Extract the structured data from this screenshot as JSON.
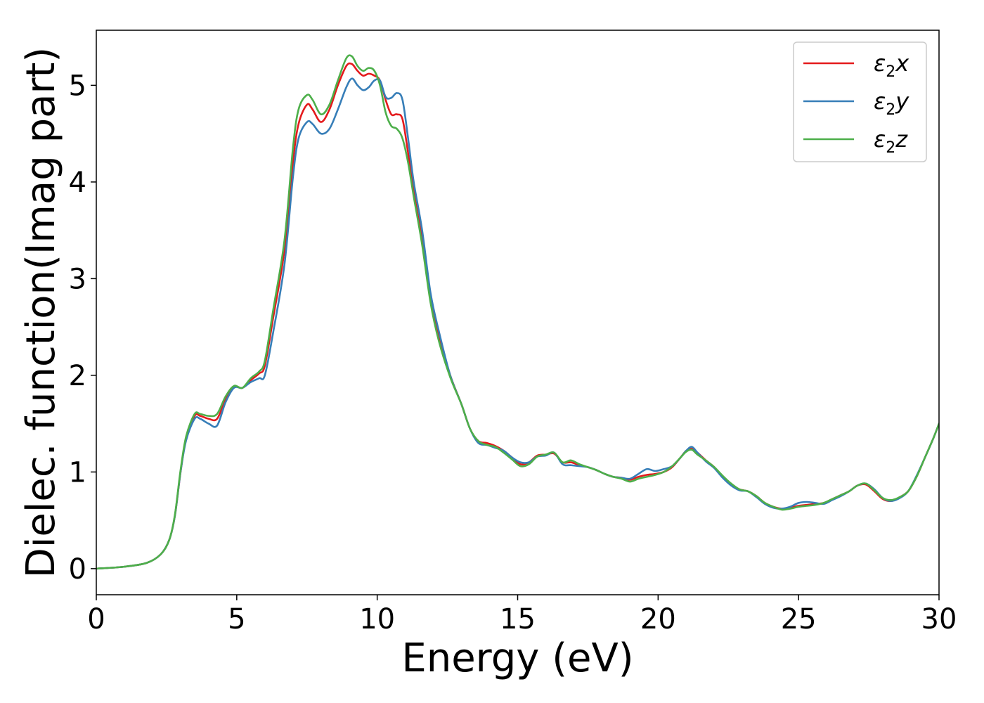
{
  "chart_data": {
    "type": "line",
    "title": "",
    "xlabel": "Energy (eV)",
    "ylabel": "Dielec. function(Imag part)",
    "xlim": [
      0,
      30
    ],
    "ylim": [
      -0.27,
      5.57
    ],
    "xticks": [
      0,
      5,
      10,
      15,
      20,
      25,
      30
    ],
    "xtick_labels": [
      "0",
      "5",
      "10",
      "15",
      "20",
      "25",
      "30"
    ],
    "yticks": [
      0,
      1,
      2,
      3,
      4,
      5
    ],
    "ytick_labels": [
      "0",
      "1",
      "2",
      "3",
      "4",
      "5"
    ],
    "grid": false,
    "legend_position": "top-right",
    "series": [
      {
        "name": "ε2x",
        "legend": {
          "symbol": "ε",
          "sub": "2",
          "axis": "x"
        },
        "color": "#e41a1c",
        "x": [
          0,
          1,
          1.8,
          2.3,
          2.6,
          2.8,
          3.0,
          3.2,
          3.5,
          3.7,
          4.0,
          4.3,
          4.6,
          4.9,
          5.2,
          5.5,
          5.8,
          6.0,
          6.3,
          6.7,
          7.0,
          7.2,
          7.5,
          7.7,
          8.0,
          8.3,
          8.6,
          8.9,
          9.1,
          9.3,
          9.5,
          9.7,
          9.9,
          10.1,
          10.3,
          10.5,
          10.7,
          10.9,
          11.1,
          11.3,
          11.6,
          11.9,
          12.2,
          12.6,
          13.0,
          13.3,
          13.6,
          13.9,
          14.2,
          14.5,
          14.8,
          15.1,
          15.4,
          15.7,
          16.0,
          16.3,
          16.6,
          16.9,
          17.2,
          17.5,
          17.8,
          18.1,
          18.4,
          18.7,
          19.0,
          19.3,
          19.6,
          19.9,
          20.2,
          20.5,
          20.8,
          21.0,
          21.2,
          21.4,
          21.7,
          22.0,
          22.3,
          22.6,
          22.9,
          23.2,
          23.5,
          23.8,
          24.1,
          24.4,
          24.7,
          25.0,
          25.3,
          25.6,
          25.9,
          26.2,
          26.5,
          26.8,
          27.1,
          27.4,
          27.7,
          28.0,
          28.3,
          28.6,
          28.9,
          29.2,
          29.5,
          29.8,
          30.0
        ],
        "y": [
          0,
          0.02,
          0.06,
          0.15,
          0.3,
          0.55,
          1.0,
          1.35,
          1.58,
          1.58,
          1.55,
          1.55,
          1.75,
          1.88,
          1.87,
          1.95,
          2.02,
          2.1,
          2.6,
          3.3,
          4.2,
          4.6,
          4.8,
          4.75,
          4.62,
          4.75,
          5.0,
          5.2,
          5.22,
          5.15,
          5.1,
          5.12,
          5.1,
          5.05,
          4.85,
          4.7,
          4.7,
          4.65,
          4.3,
          3.9,
          3.4,
          2.8,
          2.4,
          2.0,
          1.7,
          1.45,
          1.32,
          1.3,
          1.27,
          1.22,
          1.15,
          1.08,
          1.1,
          1.17,
          1.18,
          1.19,
          1.1,
          1.1,
          1.07,
          1.05,
          1.02,
          0.98,
          0.95,
          0.94,
          0.92,
          0.95,
          0.97,
          0.98,
          1.0,
          1.05,
          1.15,
          1.22,
          1.24,
          1.2,
          1.12,
          1.05,
          0.95,
          0.87,
          0.82,
          0.8,
          0.75,
          0.68,
          0.64,
          0.62,
          0.63,
          0.65,
          0.66,
          0.67,
          0.68,
          0.72,
          0.76,
          0.8,
          0.86,
          0.87,
          0.8,
          0.72,
          0.7,
          0.74,
          0.8,
          0.95,
          1.15,
          1.35,
          1.5
        ]
      },
      {
        "name": "ε2y",
        "legend": {
          "symbol": "ε",
          "sub": "2",
          "axis": "y"
        },
        "color": "#377eb8",
        "x": [
          0,
          1,
          1.8,
          2.3,
          2.6,
          2.8,
          3.0,
          3.2,
          3.5,
          3.7,
          4.0,
          4.3,
          4.6,
          4.9,
          5.2,
          5.5,
          5.8,
          6.0,
          6.3,
          6.7,
          7.0,
          7.2,
          7.5,
          7.7,
          8.0,
          8.3,
          8.6,
          8.9,
          9.1,
          9.3,
          9.5,
          9.7,
          9.9,
          10.1,
          10.3,
          10.5,
          10.7,
          10.9,
          11.1,
          11.3,
          11.6,
          11.9,
          12.2,
          12.6,
          13.0,
          13.3,
          13.6,
          13.9,
          14.2,
          14.5,
          14.8,
          15.1,
          15.4,
          15.7,
          16.0,
          16.3,
          16.6,
          16.9,
          17.2,
          17.5,
          17.8,
          18.1,
          18.4,
          18.7,
          19.0,
          19.3,
          19.6,
          19.9,
          20.2,
          20.5,
          20.8,
          21.0,
          21.2,
          21.4,
          21.7,
          22.0,
          22.3,
          22.6,
          22.9,
          23.2,
          23.5,
          23.8,
          24.1,
          24.4,
          24.7,
          25.0,
          25.3,
          25.6,
          25.9,
          26.2,
          26.5,
          26.8,
          27.1,
          27.4,
          27.7,
          28.0,
          28.3,
          28.6,
          28.9,
          29.2,
          29.5,
          29.8,
          30.0
        ],
        "y": [
          0,
          0.02,
          0.06,
          0.15,
          0.3,
          0.55,
          1.0,
          1.33,
          1.55,
          1.55,
          1.5,
          1.48,
          1.72,
          1.87,
          1.87,
          1.93,
          1.97,
          2.0,
          2.45,
          3.15,
          4.05,
          4.45,
          4.62,
          4.6,
          4.5,
          4.55,
          4.75,
          4.98,
          5.07,
          5.0,
          4.95,
          4.98,
          5.05,
          5.05,
          4.88,
          4.87,
          4.92,
          4.85,
          4.45,
          4.0,
          3.5,
          2.85,
          2.45,
          2.0,
          1.7,
          1.45,
          1.3,
          1.28,
          1.25,
          1.22,
          1.15,
          1.1,
          1.1,
          1.16,
          1.17,
          1.2,
          1.08,
          1.07,
          1.06,
          1.05,
          1.02,
          0.98,
          0.95,
          0.94,
          0.93,
          0.98,
          1.03,
          1.01,
          1.03,
          1.06,
          1.15,
          1.22,
          1.26,
          1.2,
          1.11,
          1.04,
          0.94,
          0.86,
          0.81,
          0.8,
          0.74,
          0.67,
          0.63,
          0.62,
          0.64,
          0.68,
          0.69,
          0.68,
          0.67,
          0.71,
          0.75,
          0.8,
          0.86,
          0.88,
          0.82,
          0.73,
          0.7,
          0.73,
          0.8,
          0.96,
          1.15,
          1.35,
          1.5
        ]
      },
      {
        "name": "ε2z",
        "legend": {
          "symbol": "ε",
          "sub": "2",
          "axis": "z"
        },
        "color": "#4daf4a",
        "x": [
          0,
          1,
          1.8,
          2.3,
          2.6,
          2.8,
          3.0,
          3.2,
          3.5,
          3.7,
          4.0,
          4.3,
          4.6,
          4.9,
          5.2,
          5.5,
          5.8,
          6.0,
          6.3,
          6.7,
          7.0,
          7.2,
          7.5,
          7.7,
          8.0,
          8.3,
          8.6,
          8.9,
          9.1,
          9.3,
          9.5,
          9.7,
          9.9,
          10.1,
          10.3,
          10.5,
          10.7,
          10.9,
          11.1,
          11.3,
          11.6,
          11.9,
          12.2,
          12.6,
          13.0,
          13.3,
          13.6,
          13.9,
          14.2,
          14.5,
          14.8,
          15.1,
          15.4,
          15.7,
          16.0,
          16.3,
          16.6,
          16.9,
          17.2,
          17.5,
          17.8,
          18.1,
          18.4,
          18.7,
          19.0,
          19.3,
          19.6,
          19.9,
          20.2,
          20.5,
          20.8,
          21.0,
          21.2,
          21.4,
          21.7,
          22.0,
          22.3,
          22.6,
          22.9,
          23.2,
          23.5,
          23.8,
          24.1,
          24.4,
          24.7,
          25.0,
          25.3,
          25.6,
          25.9,
          26.2,
          26.5,
          26.8,
          27.1,
          27.4,
          27.7,
          28.0,
          28.3,
          28.6,
          28.9,
          29.2,
          29.5,
          29.8,
          30.0
        ],
        "y": [
          0,
          0.02,
          0.06,
          0.15,
          0.3,
          0.56,
          1.02,
          1.37,
          1.6,
          1.6,
          1.58,
          1.6,
          1.78,
          1.89,
          1.87,
          1.97,
          2.04,
          2.15,
          2.68,
          3.4,
          4.35,
          4.75,
          4.9,
          4.85,
          4.7,
          4.8,
          5.05,
          5.28,
          5.3,
          5.2,
          5.15,
          5.18,
          5.15,
          5.0,
          4.72,
          4.58,
          4.55,
          4.45,
          4.2,
          3.85,
          3.35,
          2.75,
          2.35,
          1.98,
          1.7,
          1.45,
          1.32,
          1.28,
          1.26,
          1.2,
          1.13,
          1.06,
          1.08,
          1.16,
          1.18,
          1.2,
          1.1,
          1.12,
          1.08,
          1.05,
          1.02,
          0.98,
          0.95,
          0.93,
          0.9,
          0.93,
          0.95,
          0.97,
          1.0,
          1.06,
          1.15,
          1.21,
          1.23,
          1.18,
          1.12,
          1.05,
          0.96,
          0.88,
          0.82,
          0.8,
          0.75,
          0.68,
          0.64,
          0.61,
          0.62,
          0.64,
          0.65,
          0.66,
          0.68,
          0.72,
          0.76,
          0.8,
          0.86,
          0.88,
          0.81,
          0.73,
          0.71,
          0.74,
          0.8,
          0.95,
          1.15,
          1.35,
          1.5
        ]
      }
    ]
  }
}
